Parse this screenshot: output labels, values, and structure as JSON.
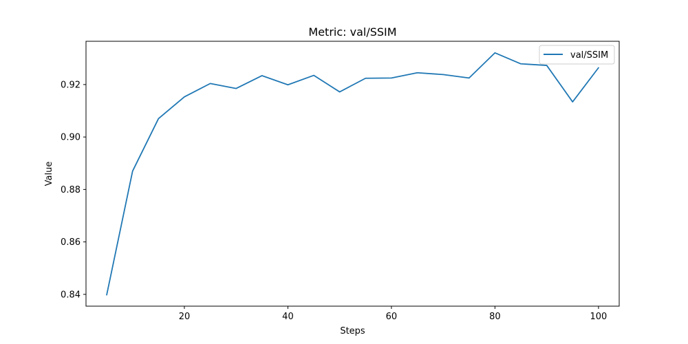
{
  "chart_data": {
    "type": "line",
    "title": "Metric: val/SSIM",
    "xlabel": "Steps",
    "ylabel": "Value",
    "xlim": [
      1,
      104
    ],
    "ylim": [
      0.8355,
      0.9365
    ],
    "xticks": [
      20,
      40,
      60,
      80,
      100
    ],
    "yticks": [
      0.84,
      0.86,
      0.88,
      0.9,
      0.92
    ],
    "xtick_labels": [
      "20",
      "40",
      "60",
      "80",
      "100"
    ],
    "ytick_labels": [
      "0.84",
      "0.86",
      "0.88",
      "0.90",
      "0.92"
    ],
    "grid": false,
    "legend": {
      "position": "top-right"
    },
    "series": [
      {
        "name": "val/SSIM",
        "color": "#1f77b4",
        "x": [
          5,
          10,
          15,
          20,
          25,
          30,
          35,
          40,
          45,
          50,
          55,
          60,
          65,
          70,
          75,
          80,
          85,
          90,
          95,
          100
        ],
        "y": [
          0.8398,
          0.887,
          0.907,
          0.9153,
          0.9204,
          0.9185,
          0.9234,
          0.9199,
          0.9235,
          0.9172,
          0.9224,
          0.9225,
          0.9245,
          0.9238,
          0.9225,
          0.9321,
          0.9279,
          0.9273,
          0.9134,
          0.9264
        ]
      }
    ]
  }
}
